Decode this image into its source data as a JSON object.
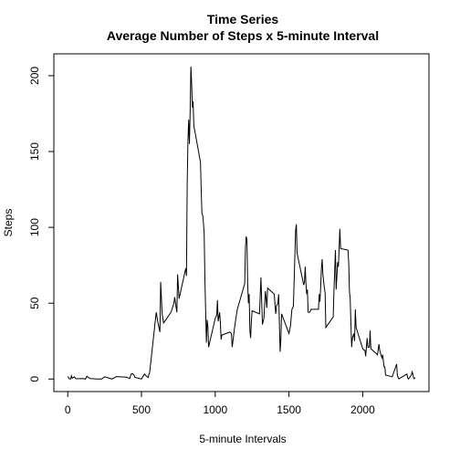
{
  "chart_data": {
    "type": "line",
    "title": "Time Series",
    "subtitle": "Average Number of Steps x 5-minute Interval",
    "x_label": "5-minute Intervals",
    "y_label": "Steps",
    "color": "#000000",
    "xlim": [
      -94.2,
      2449.2
    ],
    "ylim": [
      -8.25,
      214.4
    ],
    "xticks": [
      0,
      500,
      1000,
      1500,
      2000
    ],
    "yticks": [
      0,
      50,
      100,
      150,
      200
    ],
    "x": [
      0,
      10,
      20,
      25,
      30,
      45,
      55,
      100,
      110,
      120,
      130,
      150,
      200,
      230,
      250,
      300,
      330,
      400,
      420,
      430,
      440,
      450,
      455,
      500,
      520,
      530,
      545,
      550,
      555,
      600,
      610,
      625,
      630,
      640,
      650,
      700,
      720,
      725,
      740,
      745,
      755,
      800,
      805,
      810,
      815,
      820,
      825,
      830,
      835,
      840,
      845,
      850,
      855,
      900,
      905,
      910,
      915,
      920,
      925,
      930,
      935,
      940,
      945,
      950,
      955,
      1000,
      1010,
      1015,
      1020,
      1030,
      1035,
      1040,
      1045,
      1100,
      1110,
      1115,
      1130,
      1140,
      1150,
      1200,
      1205,
      1210,
      1215,
      1220,
      1225,
      1230,
      1235,
      1240,
      1245,
      1250,
      1300,
      1310,
      1320,
      1330,
      1340,
      1345,
      1350,
      1355,
      1400,
      1410,
      1415,
      1425,
      1430,
      1440,
      1445,
      1450,
      1500,
      1510,
      1520,
      1530,
      1545,
      1550,
      1555,
      1600,
      1605,
      1610,
      1615,
      1620,
      1625,
      1630,
      1640,
      1650,
      1700,
      1705,
      1710,
      1715,
      1720,
      1725,
      1730,
      1740,
      1745,
      1750,
      1800,
      1805,
      1815,
      1820,
      1825,
      1830,
      1835,
      1840,
      1845,
      1850,
      1900,
      1905,
      1910,
      1915,
      1920,
      1925,
      1930,
      1940,
      1945,
      1950,
      1955,
      2000,
      2010,
      2015,
      2020,
      2030,
      2035,
      2045,
      2050,
      2055,
      2100,
      2110,
      2115,
      2130,
      2135,
      2145,
      2150,
      2155,
      2200,
      2230,
      2235,
      2245,
      2300,
      2305,
      2310,
      2330,
      2335,
      2340,
      2345,
      2350,
      2355
    ],
    "values": [
      1.7,
      0.1,
      0.1,
      2.1,
      0.5,
      1.5,
      0.2,
      0.3,
      0.2,
      0,
      1.8,
      0.3,
      0,
      0,
      1.5,
      0,
      1.6,
      1.2,
      0.3,
      3.3,
      3.5,
      2.5,
      1.1,
      0,
      3.3,
      2.2,
      1.0,
      3,
      4,
      44,
      38,
      31,
      64,
      43,
      37,
      44,
      50,
      54,
      44,
      69,
      53,
      73,
      68,
      129,
      157,
      171,
      155,
      177,
      206,
      195,
      179,
      183,
      167,
      143,
      124,
      109,
      108,
      103,
      96,
      66,
      45,
      24,
      39,
      35,
      21,
      40,
      42,
      52,
      38,
      44,
      37,
      26,
      29,
      31,
      30,
      21,
      33,
      40,
      46,
      63,
      87,
      94,
      92,
      63,
      50,
      56,
      32,
      27,
      38,
      45,
      43,
      67,
      36,
      40,
      58,
      53,
      47,
      60,
      56,
      43,
      48,
      50,
      56,
      18,
      26,
      43,
      30,
      35,
      46,
      48,
      98,
      102,
      83,
      62,
      64,
      74,
      63,
      56,
      59,
      44,
      44,
      46,
      46,
      56,
      51,
      61,
      73,
      79,
      69,
      60,
      57,
      34,
      41,
      58,
      85,
      59,
      68,
      77,
      74,
      86,
      99,
      86,
      85,
      77,
      58,
      53,
      37,
      21,
      27,
      30,
      25,
      46,
      34,
      20,
      19,
      19,
      15,
      27,
      21,
      21,
      32,
      20,
      16,
      23,
      19,
      14,
      16,
      8,
      8,
      2.6,
      1.5,
      9.8,
      2.2,
      0.1,
      3.3,
      0.8,
      0,
      2.6,
      4.7,
      3.3,
      0.6,
      0.2,
      1.1
    ]
  }
}
